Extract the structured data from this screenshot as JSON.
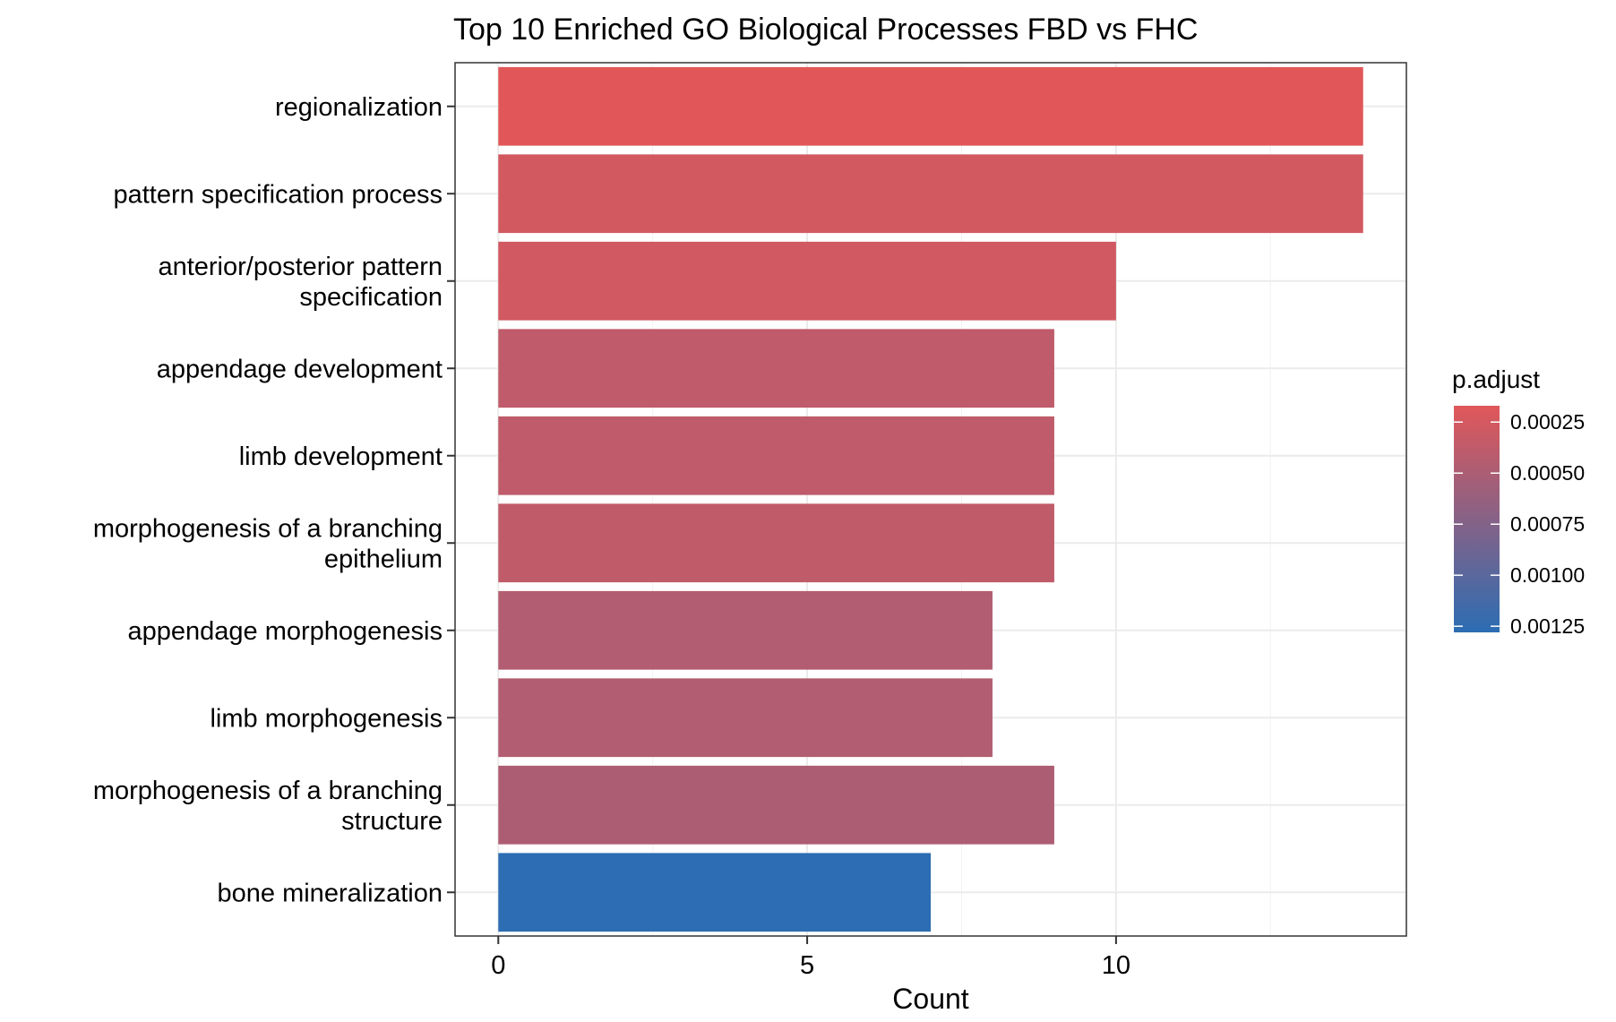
{
  "chart_data": {
    "type": "bar",
    "orientation": "horizontal",
    "title": "Top 10 Enriched GO Biological Processes FBD vs FHC",
    "xlabel": "Count",
    "ylabel": "",
    "xlim": [
      -0.7,
      14.7
    ],
    "x_ticks": [
      0,
      5,
      10
    ],
    "grid": true,
    "legend_position": "right",
    "categories": [
      [
        "regionalization"
      ],
      [
        "pattern specification process"
      ],
      [
        "anterior/posterior pattern",
        "specification"
      ],
      [
        "appendage development"
      ],
      [
        "limb development"
      ],
      [
        "morphogenesis of a branching",
        "epithelium"
      ],
      [
        "appendage morphogenesis"
      ],
      [
        "limb morphogenesis"
      ],
      [
        "morphogenesis of a branching",
        "structure"
      ],
      [
        "bone mineralization"
      ]
    ],
    "values": [
      14,
      14,
      10,
      9,
      9,
      9,
      8,
      8,
      9,
      7
    ],
    "p_adjust": [
      0.00017,
      0.00026,
      0.00027,
      0.00038,
      0.00038,
      0.00037,
      0.00046,
      0.00046,
      0.00049,
      0.00128
    ],
    "color_scale": {
      "name": "p.adjust",
      "low_color": "#e15759",
      "high_color": "#2c6db3",
      "min": 0.00017,
      "max": 0.00128,
      "ticks": [
        0.00025,
        0.0005,
        0.00075,
        0.001,
        0.00125
      ],
      "tick_labels": [
        "0.00025",
        "0.00050",
        "0.00075",
        "0.00100",
        "0.00125"
      ]
    }
  }
}
